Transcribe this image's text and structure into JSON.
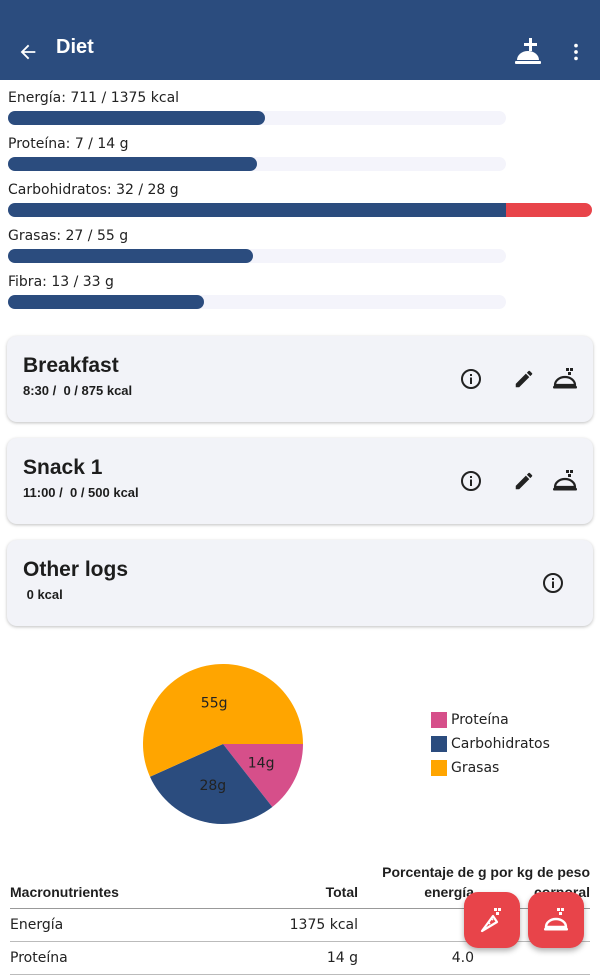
{
  "appbar": {
    "title": "Diet",
    "icons": {
      "back": "arrow-back-icon",
      "add_meal": "add-meal-icon",
      "menu": "more-vert-icon"
    }
  },
  "progress": [
    {
      "label": "Energía: 711 / 1375 kcal",
      "fraction": 0.517
    },
    {
      "label": "Proteína: 7 / 14 g",
      "fraction": 0.5
    },
    {
      "label": "Carbohidratos: 32 / 28 g",
      "fraction": 1.0,
      "overflow_fraction": 0.143
    },
    {
      "label": "Grasas: 27 / 55 g",
      "fraction": 0.491
    },
    {
      "label": "Fibra: 13 / 33 g",
      "fraction": 0.394
    }
  ],
  "meals": [
    {
      "name": "Breakfast",
      "subtitle": "8:30 /  0 / 875 kcal"
    },
    {
      "name": "Snack 1",
      "subtitle": "11:00 /  0 / 500 kcal"
    }
  ],
  "other_logs": {
    "name": "Other logs",
    "subtitle": " 0 kcal"
  },
  "colors": {
    "primary": "#2b4c7e",
    "accent": "#e8444a",
    "protein": "#d64f8a",
    "carbs": "#2b4c7e",
    "fat": "#ffa500",
    "track": "#f4f4fb"
  },
  "chart_data": {
    "type": "pie",
    "slices": [
      {
        "name": "Proteína",
        "value": 14,
        "label": "14g",
        "color": "#d64f8a"
      },
      {
        "name": "Carbohidratos",
        "value": 28,
        "label": "28g",
        "color": "#2b4c7e"
      },
      {
        "name": "Grasas",
        "value": 55,
        "label": "55g",
        "color": "#ffa500"
      }
    ],
    "legend_position": "right"
  },
  "table": {
    "headers": [
      "Macronutrientes",
      "Total",
      "Porcentaje de energía",
      "g por kg de peso corporal"
    ],
    "rows": [
      [
        "Energía",
        "1375 kcal",
        "",
        ""
      ],
      [
        "Proteína",
        "14 g",
        "4.0",
        ""
      ]
    ]
  }
}
